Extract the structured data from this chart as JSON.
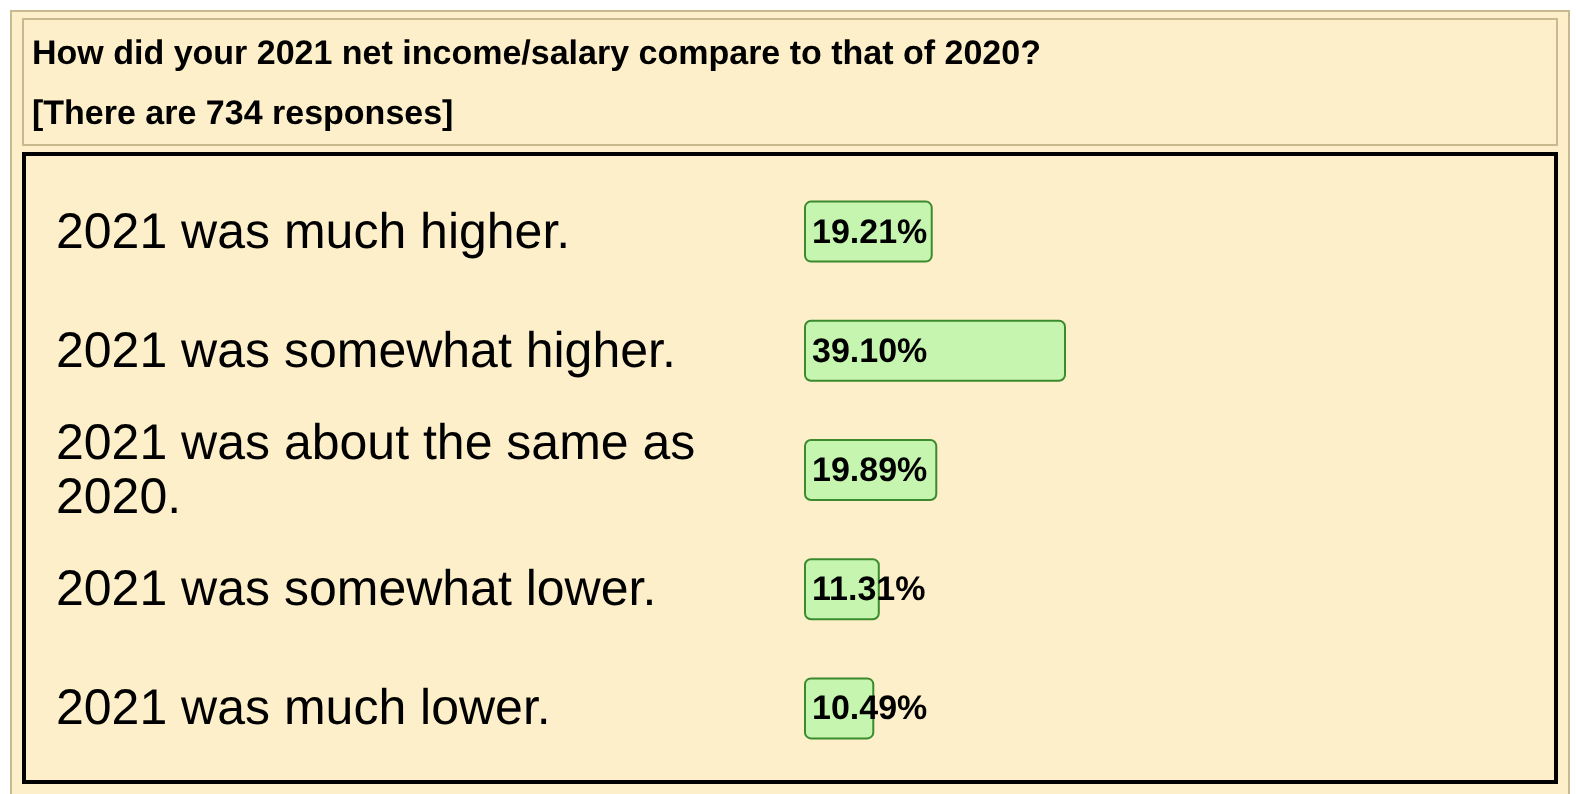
{
  "chart_data": {
    "type": "bar",
    "orientation": "horizontal",
    "tick_labels": "y",
    "title": "How did your 2021 net income/salary compare to that of 2020?",
    "subtitle": "[There are 734 responses]",
    "categories": [
      "2021 was much higher.",
      "2021 was somewhat higher.",
      "2021 was about the same as 2020.",
      "2021 was somewhat lower.",
      "2021 was much lower."
    ],
    "values": [
      19.21,
      39.1,
      19.89,
      11.31,
      10.49
    ],
    "value_labels": [
      "19.21%",
      "39.10%",
      "19.89%",
      "11.31%",
      "10.49%"
    ],
    "color": "#c6f5b0"
  }
}
